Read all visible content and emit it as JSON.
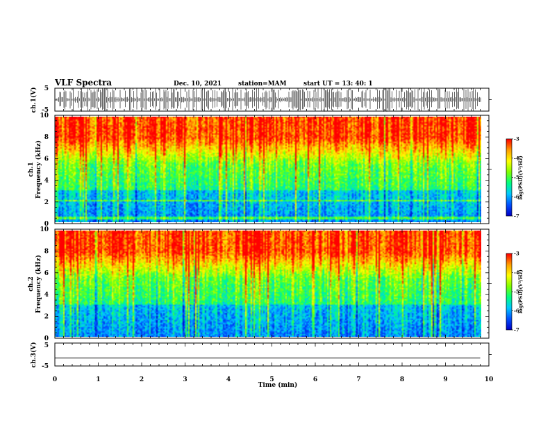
{
  "header": {
    "title": "VLF Spectra",
    "date": "Dec. 10, 2021",
    "station": "station=MAM",
    "start": "start  UT  =   13: 40: 1"
  },
  "chart_data": [
    {
      "type": "line",
      "name": "ch1-waveform",
      "ylabel": "ch.1(V)",
      "ylim": [
        -5,
        5
      ],
      "yticks": [
        "5",
        "-5"
      ],
      "xlim": [
        0,
        10
      ],
      "description": "dense impulsive waveform"
    },
    {
      "type": "heatmap",
      "name": "ch1-spectrogram",
      "ylabel_line1": "ch.1",
      "ylabel_line2": "Frequency (kHz)",
      "ylim": [
        0,
        10
      ],
      "yticks": [
        "0",
        "2",
        "4",
        "6",
        "8",
        "10"
      ],
      "x_extent_min": [
        0,
        9.8
      ],
      "colorbar": {
        "label": "log(PSD)(V²/Hz)",
        "ticks": [
          "-3",
          "-4",
          "-5",
          "-6",
          "-7"
        ],
        "range": [
          -7,
          -3
        ]
      }
    },
    {
      "type": "heatmap",
      "name": "ch2-spectrogram",
      "ylabel_line1": "ch.2",
      "ylabel_line2": "Frequency (kHz)",
      "ylim": [
        0,
        10
      ],
      "yticks": [
        "0",
        "2",
        "4",
        "6",
        "8",
        "10"
      ],
      "x_extent_min": [
        0,
        9.8
      ],
      "colorbar": {
        "label": "log(PSD)(V²/Hz)",
        "ticks": [
          "-3",
          "-4",
          "-5",
          "-6",
          "-7"
        ],
        "range": [
          -7,
          -3
        ]
      }
    },
    {
      "type": "line",
      "name": "ch3-waveform",
      "ylabel": "ch.3(V)",
      "ylim": [
        -5,
        5
      ],
      "yticks": [
        "5",
        "-5"
      ],
      "x": [
        0,
        9.8
      ],
      "y": [
        -1.5,
        -1.5
      ]
    }
  ],
  "xaxis": {
    "label": "Time  (min)",
    "ticks": [
      "0",
      "1",
      "2",
      "3",
      "4",
      "5",
      "6",
      "7",
      "8",
      "9",
      "10"
    ],
    "xlim": [
      0,
      10
    ]
  },
  "colors": [
    "#0000c8",
    "#0050ff",
    "#00c8ff",
    "#00ff80",
    "#80ff00",
    "#ffff00",
    "#ffa000",
    "#ff0000"
  ]
}
